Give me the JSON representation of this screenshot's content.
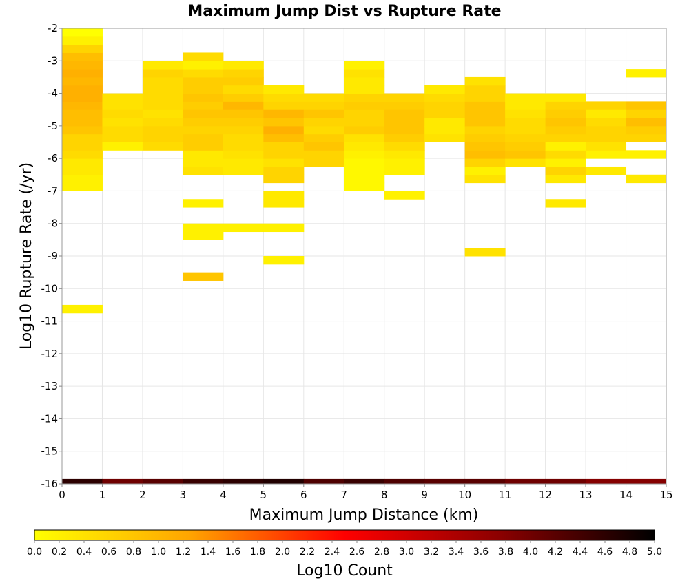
{
  "chart_data": {
    "type": "heatmap",
    "title": "Maximum Jump Dist vs Rupture Rate",
    "xlabel": "Maximum Jump Distance (km)",
    "ylabel": "Log10 Rupture Rate (/yr)",
    "xlim": [
      0,
      15
    ],
    "ylim": [
      -16,
      -2
    ],
    "x_ticks": [
      "0",
      "1",
      "2",
      "3",
      "4",
      "5",
      "6",
      "7",
      "8",
      "9",
      "10",
      "11",
      "12",
      "13",
      "14",
      "15"
    ],
    "y_ticks": [
      "-2",
      "-3",
      "-4",
      "-5",
      "-6",
      "-7",
      "-8",
      "-9",
      "-10",
      "-11",
      "-12",
      "-13",
      "-14",
      "-15",
      "-16"
    ],
    "grid": true,
    "bin_width_x": 1,
    "bin_height_y": 0.25,
    "colorbar": {
      "label": "Log10 Count",
      "min": 0,
      "max": 5,
      "ticks": [
        "0.0",
        "0.2",
        "0.4",
        "0.6",
        "0.8",
        "1.0",
        "1.2",
        "1.4",
        "1.6",
        "1.8",
        "2.0",
        "2.2",
        "2.4",
        "2.6",
        "2.8",
        "3.0",
        "3.2",
        "3.4",
        "3.6",
        "3.8",
        "4.0",
        "4.2",
        "4.4",
        "4.6",
        "4.8",
        "5.0"
      ],
      "colors": [
        "#ffff00",
        "#ffa500",
        "#ff0000",
        "#8b0000",
        "#000000"
      ]
    },
    "columns": [
      {
        "x": 0,
        "y0": -7.0,
        "cells": [
          0.2,
          0.2,
          0.3,
          0.3,
          0.5,
          0.6,
          0.6,
          0.8,
          0.9,
          0.9,
          1.0,
          1.1,
          1.1,
          1.0,
          1.1,
          1.0,
          0.9,
          0.6,
          0.2,
          0.0
        ]
      },
      {
        "x": 0,
        "y0": -10.75,
        "cells": [
          0.2
        ]
      },
      {
        "x": 1,
        "y0": -5.75,
        "cells": [
          0.2,
          0.5,
          0.5,
          0.4,
          0.5,
          0.4,
          0.4
        ]
      },
      {
        "x": 2,
        "y0": -5.75,
        "cells": [
          0.5,
          0.6,
          0.6,
          0.5,
          0.4,
          0.5,
          0.5,
          0.5,
          0.5,
          0.6,
          0.3
        ]
      },
      {
        "x": 3,
        "y0": -6.5,
        "cells": [
          0.4,
          0.3,
          0.3,
          0.7,
          0.7,
          0.6,
          0.7,
          0.8,
          0.7,
          0.8,
          0.7,
          0.7,
          0.5,
          0.2,
          0.5
        ]
      },
      {
        "x": 3,
        "y0": -7.5,
        "cells": [
          0.2
        ]
      },
      {
        "x": 3,
        "y0": -8.5,
        "cells": [
          0.2,
          0.2
        ]
      },
      {
        "x": 3,
        "y0": -9.75,
        "cells": [
          0.8
        ]
      },
      {
        "x": 4,
        "y0": -6.5,
        "cells": [
          0.3,
          0.3,
          0.4,
          0.5,
          0.5,
          0.6,
          0.7,
          0.8,
          1.0,
          0.7,
          0.5,
          0.7,
          0.6,
          0.3
        ]
      },
      {
        "x": 4,
        "y0": -8.25,
        "cells": [
          0.2
        ]
      },
      {
        "x": 5,
        "y0": -6.75,
        "cells": [
          0.6,
          0.6,
          0.4,
          0.6,
          0.6,
          0.9,
          1.1,
          0.8,
          1.0,
          0.6,
          0.5,
          0.3
        ]
      },
      {
        "x": 5,
        "y0": -7.5,
        "cells": [
          0.3,
          0.3
        ]
      },
      {
        "x": 5,
        "y0": -8.25,
        "cells": [
          0.2
        ]
      },
      {
        "x": 5,
        "y0": -9.25,
        "cells": [
          0.2
        ]
      },
      {
        "x": 6,
        "y0": -6.25,
        "cells": [
          0.6,
          0.6,
          0.8,
          0.7,
          0.5,
          0.6,
          0.8,
          0.6,
          0.5
        ]
      },
      {
        "x": 7,
        "y0": -7.0,
        "cells": [
          0.1,
          0.1,
          0.1,
          0.1,
          0.2,
          0.3,
          0.4,
          0.7,
          0.6,
          0.6,
          0.7,
          0.6,
          0.3,
          0.3,
          0.4,
          0.2
        ]
      },
      {
        "x": 8,
        "y0": -7.25,
        "cells": [
          0.2
        ]
      },
      {
        "x": 8,
        "y0": -6.5,
        "cells": [
          0.2,
          0.2,
          0.3,
          0.5,
          0.7,
          0.8,
          0.8,
          0.8,
          0.7,
          0.6
        ]
      },
      {
        "x": 9,
        "y0": -5.5,
        "cells": [
          0.4,
          0.3,
          0.3,
          0.6,
          0.6,
          0.5,
          0.3
        ]
      },
      {
        "x": 10,
        "y0": -6.75,
        "cells": [
          0.4,
          0.2,
          0.6,
          0.9,
          0.8,
          0.7,
          0.6,
          0.8,
          0.8,
          0.8,
          0.6,
          0.6,
          0.4
        ]
      },
      {
        "x": 10,
        "y0": -9.0,
        "cells": [
          0.4
        ]
      },
      {
        "x": 11,
        "y0": -6.25,
        "cells": [
          0.4,
          0.8,
          0.7,
          0.6,
          0.5,
          0.5,
          0.4,
          0.3,
          0.3
        ]
      },
      {
        "x": 12,
        "y0": -7.5,
        "cells": [
          0.3
        ]
      },
      {
        "x": 12,
        "y0": -6.75,
        "cells": [
          0.3,
          0.6,
          0.2,
          0.5,
          0.2,
          0.6,
          0.7,
          0.8,
          0.7,
          0.6,
          0.3
        ]
      },
      {
        "x": 13,
        "y0": -6.5,
        "cells": [
          0.3
        ]
      },
      {
        "x": 13,
        "y0": -6.0,
        "cells": [
          0.2,
          0.4,
          0.6,
          0.6,
          0.5,
          0.3,
          0.6
        ]
      },
      {
        "x": 14,
        "y0": -6.75,
        "cells": [
          0.3
        ]
      },
      {
        "x": 14,
        "y0": -6.0,
        "cells": [
          0.2
        ]
      },
      {
        "x": 14,
        "y0": -5.5,
        "cells": [
          0.6,
          0.7,
          0.9,
          0.6,
          0.8
        ]
      },
      {
        "x": 14,
        "y0": -3.5,
        "cells": [
          0.2
        ]
      }
    ],
    "bottom_row": {
      "y0": -16.0,
      "y1": -15.85,
      "values": [
        4.6,
        4.0,
        4.2,
        4.5,
        4.6,
        4.7,
        4.3,
        4.5,
        4.3,
        4.2,
        4.2,
        4.0,
        4.0,
        3.8,
        3.8
      ]
    }
  }
}
